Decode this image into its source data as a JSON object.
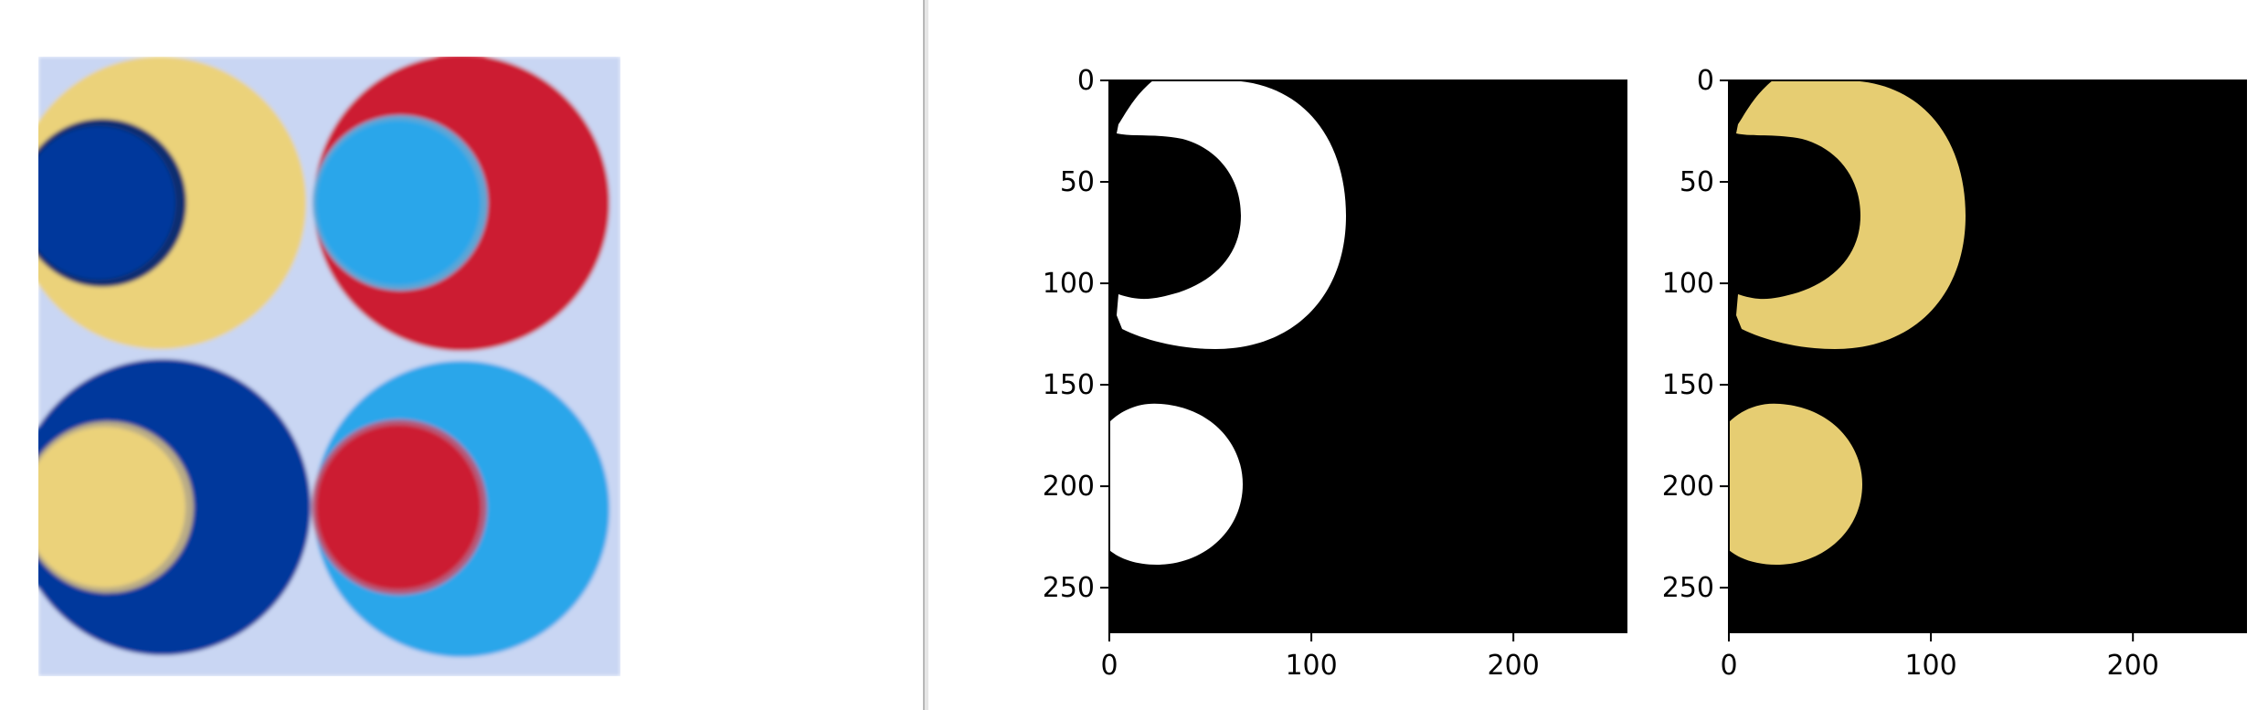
{
  "source_image": {
    "alt": "Four overlapping colored circles: yellow, red, dark blue and light blue discs with contrasting inner discs",
    "colors": {
      "background": "#c9d6f3",
      "yellow": "#ebd27a",
      "red": "#cc1f33",
      "dark_blue": "#06389c",
      "light_blue": "#2aa6ea"
    }
  },
  "plots": [
    {
      "name": "binary-mask",
      "description": "white mask of yellow regions on black",
      "colors": {
        "background": "#000000",
        "mask": "#ffffff"
      }
    },
    {
      "name": "masked-image",
      "description": "yellow regions extracted on black",
      "colors": {
        "background": "#000000",
        "mask": "#e6cd72"
      }
    }
  ],
  "chart_data": [
    {
      "type": "heatmap",
      "x_ticks": [
        0,
        100,
        200
      ],
      "y_ticks": [
        0,
        50,
        100,
        150,
        200,
        250
      ],
      "xlim": [
        0,
        256
      ],
      "ylim": [
        272,
        0
      ],
      "xlabel": "",
      "ylabel": "",
      "title": ""
    },
    {
      "type": "heatmap",
      "x_ticks": [
        0,
        100,
        200
      ],
      "y_ticks": [
        0,
        50,
        100,
        150,
        200,
        250
      ],
      "xlim": [
        0,
        256
      ],
      "ylim": [
        272,
        0
      ],
      "xlabel": "",
      "ylabel": "",
      "title": ""
    }
  ]
}
